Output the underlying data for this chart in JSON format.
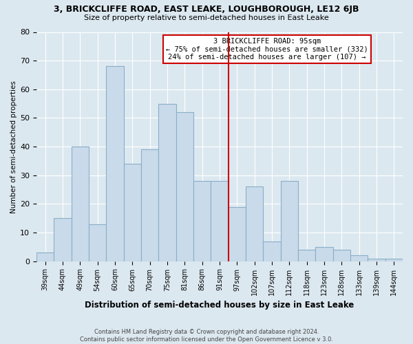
{
  "title1": "3, BRICKCLIFFE ROAD, EAST LEAKE, LOUGHBOROUGH, LE12 6JB",
  "title2": "Size of property relative to semi-detached houses in East Leake",
  "xlabel": "Distribution of semi-detached houses by size in East Leake",
  "ylabel": "Number of semi-detached properties",
  "footer1": "Contains HM Land Registry data © Crown copyright and database right 2024.",
  "footer2": "Contains public sector information licensed under the Open Government Licence v 3.0.",
  "categories": [
    "39sqm",
    "44sqm",
    "49sqm",
    "54sqm",
    "60sqm",
    "65sqm",
    "70sqm",
    "75sqm",
    "81sqm",
    "86sqm",
    "91sqm",
    "97sqm",
    "102sqm",
    "107sqm",
    "112sqm",
    "118sqm",
    "123sqm",
    "128sqm",
    "133sqm",
    "139sqm",
    "144sqm"
  ],
  "values": [
    3,
    15,
    40,
    13,
    68,
    34,
    39,
    55,
    52,
    28,
    28,
    19,
    26,
    7,
    28,
    4,
    5,
    4,
    2,
    1,
    1
  ],
  "bar_color": "#c9daea",
  "bar_edge_color": "#8aaec8",
  "vline_color": "#cc0000",
  "annotation_title": "3 BRICKCLIFFE ROAD: 95sqm",
  "annotation_line1": "← 75% of semi-detached houses are smaller (332)",
  "annotation_line2": "24% of semi-detached houses are larger (107) →",
  "ylim": [
    0,
    80
  ],
  "yticks": [
    0,
    10,
    20,
    30,
    40,
    50,
    60,
    70,
    80
  ],
  "bg_color": "#dce8f0",
  "grid_color": "#ffffff"
}
